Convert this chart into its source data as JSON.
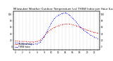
{
  "title": "Milwaukee Weather Outdoor Temperature (vs) THSW Index per Hour (Last 24 Hours)",
  "title_fontsize": 2.8,
  "temp_color": "#dd0000",
  "thsw_color": "#0000ee",
  "background_color": "#ffffff",
  "ylim": [
    -10,
    110
  ],
  "yticks": [
    0,
    20,
    40,
    60,
    80,
    100
  ],
  "ytick_labels": [
    "0",
    "20",
    "40",
    "60",
    "80",
    "100"
  ],
  "hours": [
    0,
    1,
    2,
    3,
    4,
    5,
    6,
    7,
    8,
    9,
    10,
    11,
    12,
    13,
    14,
    15,
    16,
    17,
    18,
    19,
    20,
    21,
    22,
    23
  ],
  "temp_values": [
    18,
    17,
    16,
    16,
    15,
    15,
    16,
    20,
    32,
    44,
    54,
    60,
    65,
    68,
    70,
    70,
    68,
    65,
    60,
    56,
    52,
    48,
    44,
    42
  ],
  "thsw_values": [
    12,
    11,
    10,
    9,
    8,
    8,
    9,
    14,
    30,
    50,
    72,
    88,
    97,
    102,
    104,
    98,
    88,
    76,
    62,
    52,
    44,
    36,
    30,
    26
  ],
  "legend_temp": "Outdoor Temp",
  "legend_thsw": "THSW Index",
  "grid_color": "#aaaaaa",
  "grid_alpha": 0.8
}
